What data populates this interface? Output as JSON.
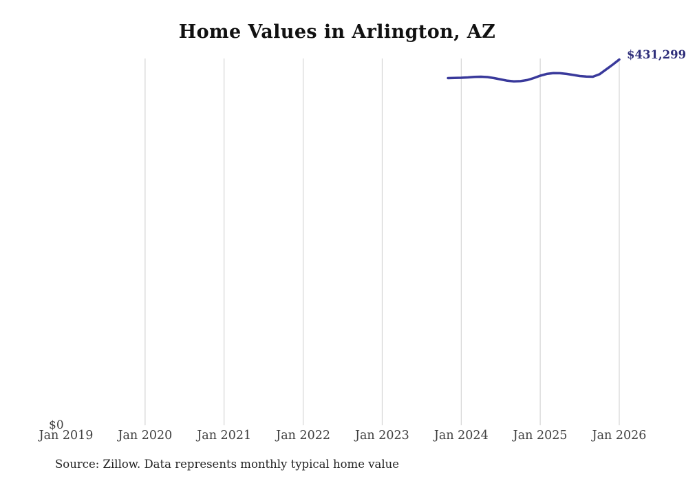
{
  "title": "Home Values in Arlington, AZ",
  "y_zero_label": "$0",
  "end_value_label": "$431,299",
  "source_note": "Source: Zillow. Data represents monthly typical home value",
  "colors": {
    "line": "#39399b",
    "end_label": "#2e2e7a",
    "gridline": "#cccccc",
    "axis_text": "#3f3f3f",
    "title_text": "#111111"
  },
  "chart_data": {
    "type": "line",
    "title": "Home Values in Arlington, AZ",
    "xlabel": "",
    "ylabel": "",
    "x_tick_labels": [
      "Jan 2019",
      "Jan 2020",
      "Jan 2021",
      "Jan 2022",
      "Jan 2023",
      "Jan 2024",
      "Jan 2025",
      "Jan 2026"
    ],
    "y_tick_labels": [
      "$0"
    ],
    "ylim": [
      0,
      432500
    ],
    "grid": "vertical-yearly-no-first",
    "legend": "none",
    "end_annotation": "$431,299",
    "series": [
      {
        "name": "Typical home value",
        "x": [
          "2023-11",
          "2023-12",
          "2024-01",
          "2024-02",
          "2024-03",
          "2024-04",
          "2024-05",
          "2024-06",
          "2024-07",
          "2024-08",
          "2024-09",
          "2024-10",
          "2024-11",
          "2024-12",
          "2025-01",
          "2025-02",
          "2025-03",
          "2025-04",
          "2025-05",
          "2025-06",
          "2025-07",
          "2025-08",
          "2025-09",
          "2025-10",
          "2025-11",
          "2025-12",
          "2026-01"
        ],
        "values": [
          409400,
          409600,
          409800,
          410200,
          410800,
          411000,
          410600,
          409400,
          407800,
          406300,
          405600,
          405800,
          407000,
          409400,
          412200,
          414300,
          415200,
          415100,
          414300,
          413100,
          411800,
          411200,
          411000,
          413900,
          419600,
          425200,
          431299
        ]
      }
    ]
  }
}
